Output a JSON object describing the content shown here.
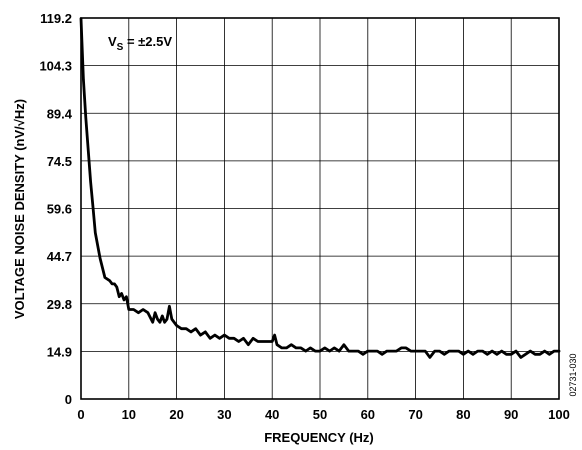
{
  "chart_data": {
    "type": "line",
    "title": "",
    "xlabel": "FREQUENCY (Hz)",
    "ylabel": "VOLTAGE NOISE DENSITY (nV/√Hz)",
    "xlim": [
      0,
      100
    ],
    "ylim": [
      0,
      119.2
    ],
    "xticks": [
      0,
      10,
      20,
      30,
      40,
      50,
      60,
      70,
      80,
      90,
      100
    ],
    "yticks": [
      0,
      14.9,
      29.8,
      44.7,
      59.6,
      74.5,
      89.4,
      104.3,
      119.2
    ],
    "grid": true,
    "annotation": {
      "main": "V",
      "subscript": "S",
      "rest": " = ±2.5V"
    },
    "figure_id": "02731-030",
    "series": [
      {
        "color": "#000000",
        "x": [
          0,
          0.5,
          1,
          1.5,
          2,
          2.5,
          3,
          4,
          5,
          6,
          6.5,
          7,
          7.5,
          8,
          8.5,
          9,
          9.5,
          10,
          11,
          12,
          13,
          14,
          15,
          15.5,
          16,
          16.5,
          17,
          17.5,
          18,
          18.5,
          19,
          20,
          21,
          22,
          23,
          24,
          25,
          26,
          27,
          28,
          29,
          30,
          31,
          32,
          33,
          34,
          35,
          36,
          37,
          38,
          39,
          40,
          40.5,
          41,
          42,
          43,
          44,
          45,
          46,
          47,
          48,
          49,
          50,
          51,
          52,
          53,
          54,
          55,
          56,
          57,
          58,
          59,
          60,
          61,
          62,
          63,
          64,
          65,
          66,
          67,
          68,
          69,
          70,
          71,
          72,
          73,
          74,
          75,
          76,
          77,
          78,
          79,
          80,
          81,
          82,
          83,
          84,
          85,
          86,
          87,
          88,
          89,
          90,
          91,
          92,
          93,
          94,
          95,
          96,
          97,
          98,
          99,
          100
        ],
        "y": [
          119,
          100,
          88,
          78,
          68,
          60,
          52,
          44,
          38,
          37,
          36,
          36,
          35,
          32,
          33,
          31,
          32,
          28,
          28,
          27,
          28,
          27,
          24,
          27,
          25,
          24,
          26,
          24,
          25,
          29,
          25,
          23,
          22,
          22,
          21,
          22,
          20,
          21,
          19,
          20,
          19,
          20,
          19,
          19,
          18,
          19,
          17,
          19,
          18,
          18,
          18,
          18,
          20,
          17,
          16,
          16,
          17,
          16,
          16,
          15,
          16,
          15,
          15,
          16,
          15,
          16,
          15,
          17,
          15,
          15,
          15,
          14,
          15,
          15,
          15,
          14,
          15,
          15,
          15,
          16,
          16,
          15,
          15,
          15,
          15,
          13,
          15,
          15,
          14,
          15,
          15,
          15,
          14,
          15,
          14,
          15,
          15,
          14,
          15,
          14,
          15,
          14,
          14,
          15,
          13,
          14,
          15,
          14,
          14,
          15,
          14,
          15,
          15
        ]
      }
    ]
  }
}
